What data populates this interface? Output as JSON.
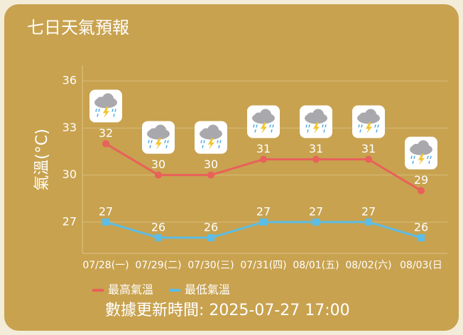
{
  "chart_data": {
    "type": "line",
    "title": "七日天氣預報",
    "y_label": "氣溫(°C)",
    "categories": [
      "07/28(一)",
      "07/29(二)",
      "07/30(三)",
      "07/31(四)",
      "08/01(五)",
      "08/02(六)",
      "08/03(日"
    ],
    "series": [
      {
        "name": "最高氣溫",
        "color": "#e8615b",
        "values": [
          32,
          30,
          30,
          31,
          31,
          31,
          29
        ]
      },
      {
        "name": "最低氣溫",
        "color": "#5cbde6",
        "values": [
          27,
          26,
          26,
          27,
          27,
          27,
          26
        ]
      }
    ],
    "ylim": [
      25,
      37
    ],
    "yticks": [
      27,
      30,
      33,
      36
    ],
    "grid": true,
    "footer": "數據更新時間: 2025-07-27 17:00"
  }
}
